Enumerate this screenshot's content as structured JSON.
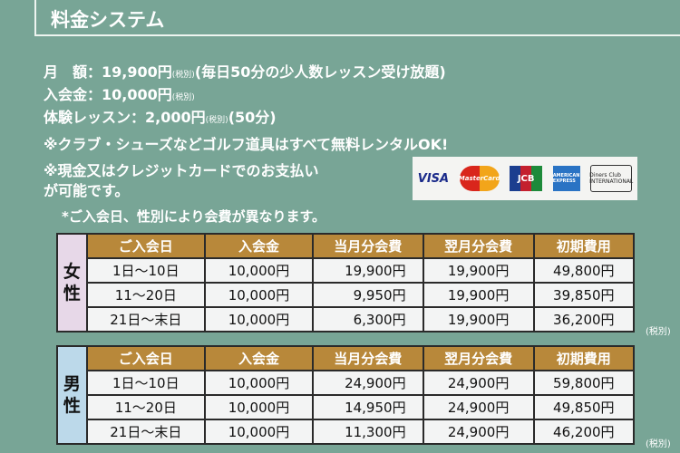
{
  "title": "料金システム",
  "info": {
    "monthly": {
      "label": "月　額",
      "price": "19,900円",
      "tax": "(税別)",
      "note": "(毎日50分の少人数レッスン受け放題)"
    },
    "entry": {
      "label": "入会金",
      "price": "10,000円",
      "tax": "(税別)"
    },
    "trial": {
      "label": "体験レッスン",
      "price": "2,000円",
      "tax": "(税別)",
      "note": "(50分)"
    },
    "rental_note": "※クラブ・シューズなどゴルフ道具はすべて無料レンタルOK!",
    "payment_note_1": "※現金又はクレジットカードでのお支払い",
    "payment_note_2": "が可能です。",
    "variance_note": "*ご入会日、性別により会費が異なります。"
  },
  "cards": [
    "VISA",
    "MasterCard",
    "JCB",
    "AMERICAN EXPRESS",
    "Diners Club INTERNATIONAL"
  ],
  "columns": [
    "ご入会日",
    "入会金",
    "当月分会費",
    "翌月分会費",
    "初期費用"
  ],
  "tax_note": "(税別)",
  "female": {
    "label": "女性",
    "rows": [
      [
        "1日〜10日",
        "10,000円",
        "19,900円",
        "19,900円",
        "49,800円"
      ],
      [
        "11〜20日",
        "10,000円",
        "9,950円",
        "19,900円",
        "39,850円"
      ],
      [
        "21日〜末日",
        "10,000円",
        "6,300円",
        "19,900円",
        "36,200円"
      ]
    ]
  },
  "male": {
    "label": "男性",
    "rows": [
      [
        "1日〜10日",
        "10,000円",
        "24,900円",
        "24,900円",
        "59,800円"
      ],
      [
        "11〜20日",
        "10,000円",
        "14,950円",
        "24,900円",
        "49,850円"
      ],
      [
        "21日〜末日",
        "10,000円",
        "11,300円",
        "24,900円",
        "46,200円"
      ]
    ]
  },
  "colors": {
    "background": "#78a596",
    "header": "#b8883a",
    "female": "#e7d8e8",
    "male": "#bcd9ea"
  }
}
